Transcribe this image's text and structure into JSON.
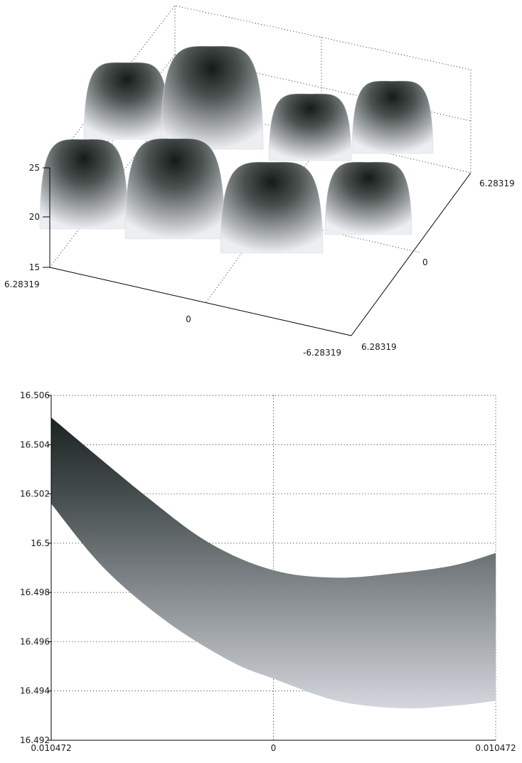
{
  "chart_data": [
    {
      "type": "surface",
      "title": "",
      "x_ticks": [
        "6.28319",
        "0",
        "-6.28319"
      ],
      "y_ticks": [
        "6.28319",
        "0",
        "6.28319"
      ],
      "z_ticks": [
        "25",
        "20",
        "15"
      ],
      "xlim": [
        -6.28319,
        6.28319
      ],
      "ylim": [
        -6.28319,
        6.28319
      ],
      "zlim": [
        15,
        25
      ],
      "peaks": 4,
      "grid": true,
      "colormap": "gray"
    },
    {
      "type": "surface-zoom",
      "title": "",
      "x_ticks": [
        "0.010472",
        "0",
        "0.010472"
      ],
      "y_ticks": [
        "16.506",
        "16.504",
        "16.502",
        "16.5",
        "16.498",
        "16.496",
        "16.494",
        "16.492"
      ],
      "xlim": [
        -0.010472,
        0.010472
      ],
      "ylim": [
        16.492,
        16.506
      ],
      "upper_edge": {
        "x": [
          -0.010472,
          -0.006,
          -0.003,
          0,
          0.003,
          0.006,
          0.0085,
          0.010472
        ],
        "y": [
          16.5051,
          16.5019,
          16.5,
          16.4989,
          16.4986,
          16.4988,
          16.4991,
          16.4996
        ]
      },
      "lower_edge": {
        "x": [
          -0.010472,
          -0.008,
          -0.005,
          -0.002,
          0,
          0.003,
          0.006,
          0.0085,
          0.010472
        ],
        "y": [
          16.5016,
          16.499,
          16.4968,
          16.4952,
          16.4945,
          16.4936,
          16.4933,
          16.4934,
          16.4936
        ]
      },
      "grid": true,
      "colormap": "gray"
    }
  ]
}
